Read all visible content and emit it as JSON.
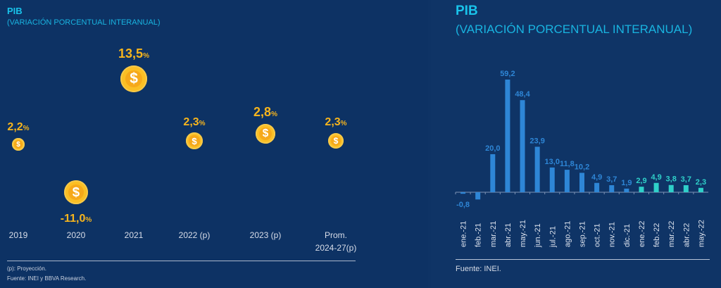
{
  "left": {
    "title": "PIB",
    "subtitle": "(VARIACIÓN PORCENTUAL INTERANUAL)",
    "points": [
      {
        "year": "2019",
        "year2": "",
        "value": "2,2",
        "unit": "%",
        "num": 2.2,
        "coin": "dollar-coin-icon"
      },
      {
        "year": "2020",
        "year2": "",
        "value": "-11,0",
        "unit": "%",
        "num": -11.0,
        "coin": "dollar-coin-icon"
      },
      {
        "year": "2021",
        "year2": "",
        "value": "13,5",
        "unit": "%",
        "num": 13.5,
        "coin": "dollar-coin-icon"
      },
      {
        "year": "2022 (p)",
        "year2": "",
        "value": "2,3",
        "unit": "%",
        "num": 2.3,
        "coin": "dollar-coin-icon"
      },
      {
        "year": "2023 (p)",
        "year2": "",
        "value": "2,8",
        "unit": "%",
        "num": 2.8,
        "coin": "dollar-coin-icon"
      },
      {
        "year": "Prom.",
        "year2": "2024-27(p)",
        "value": "2,3",
        "unit": "%",
        "num": 2.3,
        "coin": "dollar-coin-icon"
      }
    ],
    "coin_symbol": "$",
    "note": "(p): Proyección.",
    "source": "Fuente: INEI y BBVA Research."
  },
  "right": {
    "source": "Fuente: INEI."
  },
  "chart_data": {
    "type": "bar",
    "title": "PIB",
    "subtitle": "(VARIACIÓN PORCENTUAL INTERANUAL)",
    "categories": [
      "ene.-21",
      "feb.-21",
      "mar.-21",
      "abr.-21",
      "may.-21",
      "jun.-21",
      "jul.-21",
      "ago.-21",
      "sep.-21",
      "oct.-21",
      "nov.-21",
      "dic.-21",
      "ene.-22",
      "feb.-22",
      "mar.-22",
      "abr.-22",
      "may.-22"
    ],
    "values": [
      -0.8,
      -3.8,
      20.0,
      59.2,
      48.4,
      23.9,
      13.0,
      11.8,
      10.2,
      4.9,
      3.7,
      1.9,
      2.9,
      4.9,
      3.8,
      3.7,
      2.3
    ],
    "labels": [
      "-0,8",
      "",
      "20,0",
      "59,2",
      "48,4",
      "23,9",
      "13,0",
      "11,8",
      "10,2",
      "4,9",
      "3,7",
      "1,9",
      "2,9",
      "4,9",
      "3,8",
      "3,7",
      "2,3"
    ],
    "colors": {
      "2021": "#2e86d6",
      "2022": "#2fd0c9"
    },
    "xlabel": "",
    "ylabel": "",
    "ylim": [
      -5,
      60
    ],
    "grid": false,
    "legend": "none"
  }
}
